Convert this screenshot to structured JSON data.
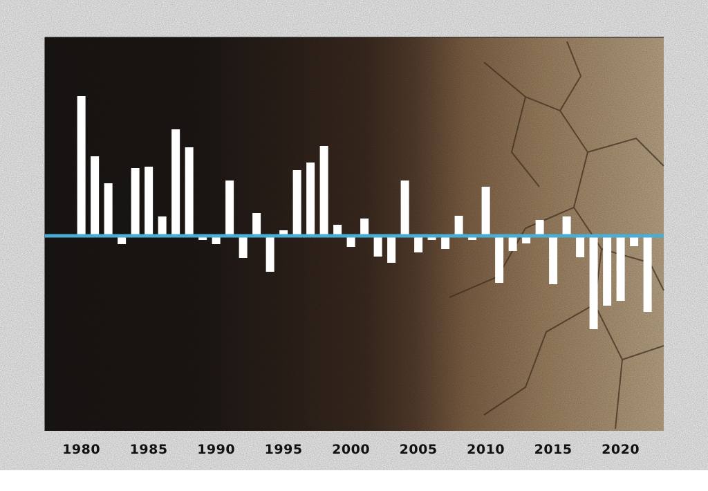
{
  "chart_data": {
    "type": "bar",
    "title": "",
    "xlabel": "",
    "ylabel": "",
    "x": [
      1980,
      1981,
      1982,
      1983,
      1984,
      1985,
      1986,
      1987,
      1988,
      1989,
      1990,
      1991,
      1992,
      1993,
      1994,
      1995,
      1996,
      1997,
      1998,
      1999,
      2000,
      2001,
      2002,
      2003,
      2004,
      2005,
      2006,
      2007,
      2008,
      2009,
      2010,
      2011,
      2012,
      2013,
      2014,
      2015,
      2016,
      2017,
      2018,
      2019,
      2020,
      2021,
      2022
    ],
    "values": [
      2.02,
      1.15,
      0.76,
      -0.12,
      0.98,
      1.0,
      0.28,
      1.54,
      1.28,
      -0.06,
      -0.12,
      0.8,
      -0.32,
      0.33,
      -0.52,
      0.08,
      0.95,
      1.06,
      1.3,
      0.16,
      -0.16,
      0.25,
      -0.3,
      -0.39,
      0.8,
      -0.24,
      -0.06,
      -0.19,
      0.29,
      -0.06,
      0.71,
      -0.68,
      -0.22,
      -0.11,
      0.23,
      -0.7,
      0.28,
      -0.31,
      -1.35,
      -1.01,
      -0.94,
      -0.15,
      -1.1
    ],
    "xticks": [
      "1980",
      "1985",
      "1990",
      "1995",
      "2000",
      "2005",
      "2010",
      "2015",
      "2020"
    ],
    "xlim": [
      1977.3,
      2023.2
    ],
    "ylim": [
      -2.82,
      2.87
    ],
    "grid": false,
    "colors": {
      "bars": "#ffffff",
      "baseline": "#4aaed4"
    }
  }
}
